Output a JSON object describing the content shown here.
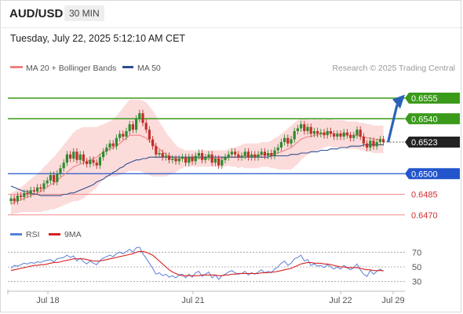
{
  "header": {
    "symbol": "AUD/USD",
    "timeframe": "30 MIN"
  },
  "datetime": "Tuesday, July 22, 2025 5:12:10 AM CET",
  "colors": {
    "bull": "#2e8b2e",
    "bear": "#c0302a",
    "ma20": "#f08080",
    "band": "#fbd5d5",
    "ma50": "#2f4f8f",
    "support": "#2255cc",
    "resistance": "#3a9a1a",
    "weak": "#f28c8c",
    "rsi": "#5a7fd8",
    "rsi_ma": "#d82020",
    "arrow": "#2a62b8"
  },
  "chart_data": [
    {
      "type": "candlestick",
      "legend": {
        "left": [
          "MA 20 + Bollinger Bands",
          "MA 50"
        ],
        "right": "Research © 2025 Trading Central"
      },
      "ylim": [
        0.6455,
        0.6575
      ],
      "x_ticks": [
        "Jul 18",
        "Jul 21",
        "Jul 22",
        "Jul 29"
      ],
      "current_price": {
        "value": 0.6523,
        "label": "0.6523"
      },
      "levels": [
        {
          "value": 0.6555,
          "label": "0.6555",
          "kind": "target"
        },
        {
          "value": 0.654,
          "label": "0.6540",
          "kind": "target"
        },
        {
          "value": 0.65,
          "label": "0.6500",
          "kind": "pivot"
        },
        {
          "value": 0.6485,
          "label": "0.6485",
          "kind": "support"
        },
        {
          "value": 0.647,
          "label": "0.6470",
          "kind": "support"
        }
      ],
      "close": [
        0.6482,
        0.648,
        0.6484,
        0.6483,
        0.6486,
        0.6485,
        0.6488,
        0.6487,
        0.649,
        0.6489,
        0.6493,
        0.6495,
        0.6499,
        0.6494,
        0.65,
        0.6504,
        0.6508,
        0.6514,
        0.6511,
        0.6516,
        0.651,
        0.6514,
        0.6509,
        0.6507,
        0.651,
        0.6508,
        0.6506,
        0.6512,
        0.6516,
        0.6519,
        0.6522,
        0.652,
        0.6526,
        0.6529,
        0.6527,
        0.6531,
        0.6536,
        0.6532,
        0.654,
        0.6544,
        0.6537,
        0.6532,
        0.6525,
        0.652,
        0.6514,
        0.6515,
        0.6512,
        0.6513,
        0.651,
        0.6511,
        0.6509,
        0.6511,
        0.6512,
        0.6508,
        0.6512,
        0.6509,
        0.6513,
        0.6515,
        0.651,
        0.6512,
        0.6514,
        0.6508,
        0.6511,
        0.6506,
        0.651,
        0.6512,
        0.6514,
        0.6516,
        0.6514,
        0.6512,
        0.6513,
        0.6516,
        0.6512,
        0.6514,
        0.6512,
        0.6514,
        0.6516,
        0.6513,
        0.6515,
        0.6513,
        0.6517,
        0.6519,
        0.6523,
        0.6526,
        0.6522,
        0.6525,
        0.6531,
        0.6533,
        0.6536,
        0.6531,
        0.6534,
        0.6529,
        0.6531,
        0.6529,
        0.653,
        0.6528,
        0.6531,
        0.6529,
        0.6527,
        0.6529,
        0.6527,
        0.653,
        0.6528,
        0.6526,
        0.6528,
        0.6532,
        0.6527,
        0.6522,
        0.6519,
        0.6524,
        0.652,
        0.6523,
        0.6525,
        0.6523
      ],
      "ma20": [
        0.6478,
        0.6479,
        0.648,
        0.6481,
        0.6482,
        0.6483,
        0.6484,
        0.6485,
        0.6486,
        0.6487,
        0.6489,
        0.649,
        0.6492,
        0.6493,
        0.6495,
        0.6497,
        0.6499,
        0.6501,
        0.6503,
        0.6505,
        0.6506,
        0.6507,
        0.6508,
        0.6509,
        0.651,
        0.6511,
        0.6512,
        0.6514,
        0.6516,
        0.6517,
        0.6518,
        0.6519,
        0.652,
        0.6522,
        0.6524,
        0.6526,
        0.6528,
        0.6528,
        0.6528,
        0.6528,
        0.6527,
        0.6526,
        0.6524,
        0.6522,
        0.652,
        0.6518,
        0.6516,
        0.6514,
        0.6513,
        0.6512,
        0.6511,
        0.6511,
        0.6511,
        0.6511,
        0.6511,
        0.6511,
        0.6511,
        0.6511,
        0.6511,
        0.6511,
        0.6511,
        0.6511,
        0.6511,
        0.6511,
        0.6511,
        0.6511,
        0.6512,
        0.6512,
        0.6512,
        0.6512,
        0.6513,
        0.6513,
        0.6513,
        0.6513,
        0.6513,
        0.6513,
        0.6514,
        0.6514,
        0.6514,
        0.6514,
        0.6515,
        0.6515,
        0.6516,
        0.6517,
        0.6518,
        0.6519,
        0.6521,
        0.6523,
        0.6525,
        0.6526,
        0.6527,
        0.6527,
        0.6528,
        0.6528,
        0.6529,
        0.6529,
        0.653,
        0.653,
        0.6529,
        0.6529,
        0.6529,
        0.6529,
        0.6528,
        0.6528,
        0.6528,
        0.6528,
        0.6527,
        0.6527,
        0.6526,
        0.6526,
        0.6525,
        0.6525,
        0.6525,
        0.6525
      ],
      "band_width": [
        0.0008,
        0.0008,
        0.0009,
        0.0009,
        0.001,
        0.0011,
        0.0012,
        0.0013,
        0.0014,
        0.0015,
        0.0016,
        0.0017,
        0.0018,
        0.0019,
        0.002,
        0.0021,
        0.0022,
        0.0023,
        0.0024,
        0.0025,
        0.0026,
        0.0026,
        0.0026,
        0.0025,
        0.0024,
        0.0023,
        0.0022,
        0.0021,
        0.002,
        0.002,
        0.002,
        0.0021,
        0.0022,
        0.0023,
        0.0024,
        0.0025,
        0.0026,
        0.0026,
        0.0026,
        0.0026,
        0.0026,
        0.0026,
        0.0025,
        0.0024,
        0.0022,
        0.002,
        0.0018,
        0.0016,
        0.0014,
        0.0012,
        0.001,
        0.0008,
        0.0007,
        0.0006,
        0.0006,
        0.0006,
        0.0006,
        0.0006,
        0.0006,
        0.0006,
        0.0006,
        0.0006,
        0.0006,
        0.0006,
        0.0006,
        0.0006,
        0.0006,
        0.0007,
        0.0007,
        0.0008,
        0.0008,
        0.0009,
        0.0009,
        0.0009,
        0.0009,
        0.0009,
        0.0009,
        0.0009,
        0.0009,
        0.001,
        0.0011,
        0.0012,
        0.0013,
        0.0014,
        0.0015,
        0.0016,
        0.0016,
        0.0016,
        0.0015,
        0.0014,
        0.0013,
        0.0012,
        0.0012,
        0.0011,
        0.0011,
        0.001,
        0.001,
        0.001,
        0.001,
        0.001,
        0.001,
        0.001,
        0.001,
        0.001,
        0.001,
        0.001,
        0.001,
        0.001,
        0.001,
        0.001,
        0.001,
        0.001,
        0.001,
        0.001
      ],
      "ma50": [
        0.6491,
        0.649,
        0.6489,
        0.6488,
        0.6487,
        0.6487,
        0.6486,
        0.6485,
        0.6485,
        0.6484,
        0.6484,
        0.6484,
        0.6484,
        0.6484,
        0.6484,
        0.6484,
        0.6485,
        0.6485,
        0.6486,
        0.6486,
        0.6487,
        0.6488,
        0.6489,
        0.649,
        0.6491,
        0.6492,
        0.6494,
        0.6495,
        0.6496,
        0.6498,
        0.6499,
        0.6501,
        0.6502,
        0.6504,
        0.6505,
        0.6507,
        0.6508,
        0.6509,
        0.651,
        0.651,
        0.6511,
        0.6511,
        0.6512,
        0.6512,
        0.6512,
        0.6512,
        0.6512,
        0.6512,
        0.6512,
        0.6512,
        0.6512,
        0.6512,
        0.6512,
        0.6512,
        0.6512,
        0.6512,
        0.6512,
        0.6512,
        0.6512,
        0.6512,
        0.6512,
        0.6512,
        0.6512,
        0.6512,
        0.6512,
        0.6512,
        0.6512,
        0.6512,
        0.6512,
        0.6512,
        0.6512,
        0.6512,
        0.6512,
        0.6512,
        0.6512,
        0.6512,
        0.6512,
        0.6512,
        0.6512,
        0.6513,
        0.6513,
        0.6513,
        0.6513,
        0.6513,
        0.6513,
        0.6514,
        0.6514,
        0.6514,
        0.6515,
        0.6515,
        0.6515,
        0.6516,
        0.6516,
        0.6516,
        0.6517,
        0.6517,
        0.6517,
        0.6518,
        0.6518,
        0.6518,
        0.6519,
        0.6519,
        0.6519,
        0.652,
        0.652,
        0.652,
        0.652,
        0.6521,
        0.6521,
        0.6521,
        0.6521,
        0.6521,
        0.6521,
        0.6521
      ]
    },
    {
      "type": "line",
      "legend": [
        "RSI",
        "9MA"
      ],
      "ylim": [
        20,
        80
      ],
      "y_ticks": [
        "70",
        "50",
        "30"
      ],
      "rsi": [
        48,
        52,
        51,
        53,
        55,
        54,
        56,
        55,
        57,
        56,
        58,
        59,
        60,
        57,
        61,
        62,
        63,
        66,
        63,
        65,
        58,
        62,
        57,
        54,
        58,
        55,
        53,
        59,
        62,
        64,
        66,
        64,
        68,
        70,
        68,
        71,
        74,
        70,
        76,
        77,
        68,
        62,
        55,
        48,
        40,
        42,
        38,
        40,
        36,
        38,
        35,
        39,
        40,
        35,
        40,
        36,
        42,
        44,
        37,
        40,
        43,
        35,
        39,
        33,
        38,
        40,
        43,
        45,
        42,
        40,
        41,
        44,
        39,
        42,
        40,
        43,
        46,
        42,
        44,
        42,
        47,
        50,
        55,
        58,
        52,
        55,
        61,
        63,
        66,
        58,
        60,
        52,
        54,
        51,
        52,
        49,
        53,
        50,
        47,
        50,
        47,
        52,
        49,
        46,
        49,
        54,
        46,
        40,
        37,
        45,
        40,
        44,
        47,
        44
      ],
      "rsi_ma": [
        45,
        46,
        47,
        48,
        49,
        50,
        51,
        52,
        52,
        53,
        53,
        54,
        55,
        56,
        56,
        57,
        58,
        59,
        60,
        61,
        61,
        61,
        61,
        60,
        59,
        58,
        58,
        58,
        59,
        60,
        61,
        62,
        63,
        64,
        65,
        66,
        67,
        68,
        70,
        71,
        71,
        70,
        68,
        66,
        62,
        58,
        54,
        50,
        46,
        43,
        41,
        39,
        38,
        38,
        38,
        38,
        38,
        38,
        39,
        39,
        39,
        39,
        39,
        38,
        38,
        39,
        39,
        40,
        40,
        41,
        41,
        41,
        41,
        41,
        41,
        41,
        42,
        42,
        42,
        43,
        43,
        44,
        45,
        46,
        47,
        48,
        50,
        52,
        54,
        55,
        56,
        56,
        55,
        55,
        55,
        54,
        54,
        53,
        52,
        51,
        50,
        50,
        49,
        49,
        49,
        49,
        48,
        47,
        46,
        46,
        45,
        45,
        45,
        45
      ]
    }
  ]
}
